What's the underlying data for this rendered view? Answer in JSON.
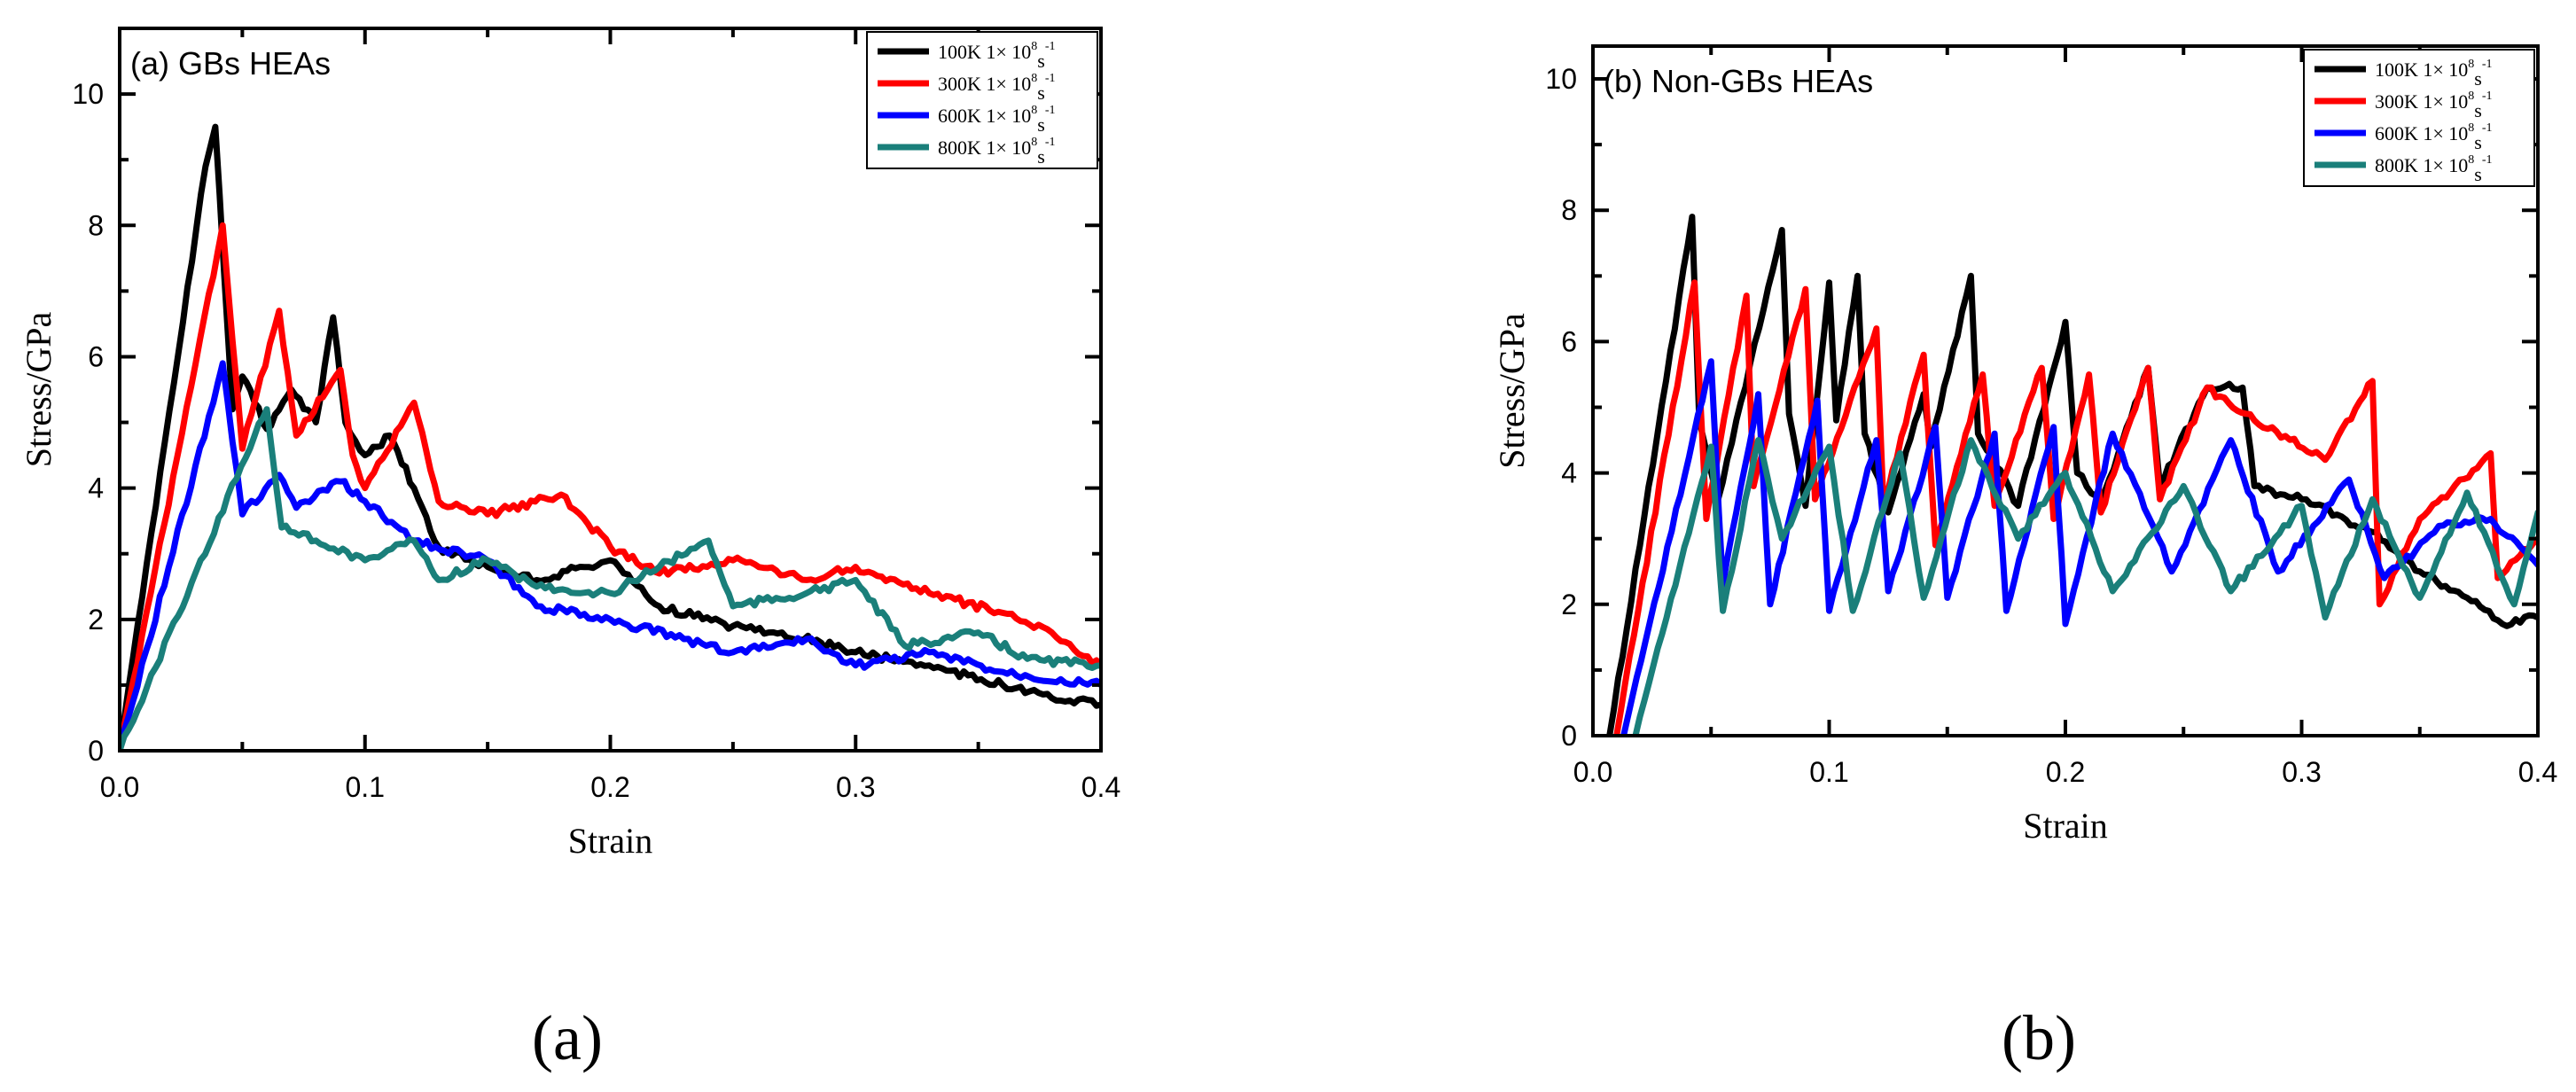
{
  "figure": {
    "subfigure_labels": [
      "(a)",
      "(b)"
    ]
  },
  "chart_data": [
    {
      "type": "line",
      "title": "(a) GBs HEAs",
      "xlabel": "Strain",
      "ylabel": "Stress/GPa",
      "xlim": [
        0,
        0.4
      ],
      "ylim": [
        0,
        11
      ],
      "xticks": [
        "0.0",
        "0.1",
        "0.2",
        "0.3",
        "0.4"
      ],
      "yticks": [
        "0",
        "2",
        "4",
        "6",
        "8",
        "10"
      ],
      "legend_position": "top-right",
      "series": [
        {
          "name": "100K  1× 10",
          "rate_exp": "8",
          "rate_unit": "s",
          "rate_unit_exp": "-1",
          "color": "#000000",
          "x": [
            0.0,
            0.035,
            0.039,
            0.046,
            0.05,
            0.06,
            0.07,
            0.08,
            0.087,
            0.092,
            0.1,
            0.11,
            0.12,
            0.13,
            0.15,
            0.17,
            0.2,
            0.22,
            0.25,
            0.27,
            0.3,
            0.33,
            0.36,
            0.38,
            0.4
          ],
          "y": [
            0.0,
            8.9,
            9.5,
            5.2,
            5.7,
            4.9,
            5.5,
            5.0,
            6.6,
            5.0,
            4.5,
            4.8,
            4.0,
            3.1,
            2.8,
            2.6,
            2.9,
            2.2,
            1.9,
            1.8,
            1.5,
            1.3,
            1.0,
            0.8,
            0.7
          ]
        },
        {
          "name": "300K  1× 10",
          "rate_exp": "8",
          "rate_unit": "s",
          "rate_unit_exp": "-1",
          "color": "#ff0000",
          "x": [
            0.0,
            0.04,
            0.042,
            0.05,
            0.065,
            0.072,
            0.09,
            0.095,
            0.1,
            0.12,
            0.13,
            0.15,
            0.18,
            0.2,
            0.22,
            0.25,
            0.28,
            0.3,
            0.33,
            0.36,
            0.38,
            0.4
          ],
          "y": [
            0.0,
            7.6,
            8.0,
            4.6,
            6.7,
            4.8,
            5.8,
            4.5,
            4.0,
            5.3,
            3.8,
            3.6,
            3.9,
            3.1,
            2.7,
            2.9,
            2.6,
            2.8,
            2.4,
            2.1,
            1.8,
            1.3
          ]
        },
        {
          "name": "600K  1× 10",
          "rate_exp": "8",
          "rate_unit": "s",
          "rate_unit_exp": "-1",
          "color": "#0000ff",
          "x": [
            0.0,
            0.04,
            0.042,
            0.05,
            0.065,
            0.072,
            0.09,
            0.1,
            0.12,
            0.15,
            0.17,
            0.2,
            0.23,
            0.25,
            0.28,
            0.3,
            0.33,
            0.36,
            0.4
          ],
          "y": [
            0.0,
            5.6,
            5.9,
            3.6,
            4.2,
            3.7,
            4.1,
            3.8,
            3.2,
            2.9,
            2.2,
            2.0,
            1.7,
            1.5,
            1.7,
            1.3,
            1.5,
            1.2,
            1.0
          ]
        },
        {
          "name": "800K  1× 10",
          "rate_exp": "8",
          "rate_unit": "s",
          "rate_unit_exp": "-1",
          "color": "#1a7f7a",
          "x": [
            0.0,
            0.055,
            0.06,
            0.066,
            0.08,
            0.1,
            0.12,
            0.13,
            0.15,
            0.17,
            0.2,
            0.22,
            0.24,
            0.25,
            0.28,
            0.3,
            0.32,
            0.35,
            0.37,
            0.4
          ],
          "y": [
            0.0,
            4.8,
            5.2,
            3.4,
            3.2,
            2.9,
            3.2,
            2.6,
            2.9,
            2.5,
            2.4,
            2.8,
            3.2,
            2.2,
            2.4,
            2.6,
            1.6,
            1.8,
            1.4,
            1.3
          ]
        }
      ]
    },
    {
      "type": "line",
      "title": "(b) Non-GBs HEAs",
      "xlabel": "Strain",
      "ylabel": "Stress/GPa",
      "xlim": [
        0,
        0.4
      ],
      "ylim": [
        0,
        10.5
      ],
      "xticks": [
        "0.0",
        "0.1",
        "0.2",
        "0.3",
        "0.4"
      ],
      "yticks": [
        "0",
        "2",
        "4",
        "6",
        "8",
        "10"
      ],
      "legend_position": "top-right",
      "series": [
        {
          "name": "100K  1× 10",
          "rate_exp": "8",
          "rate_unit": "s",
          "rate_unit_exp": "-1",
          "color": "#000000",
          "x": [
            0.007,
            0.042,
            0.045,
            0.053,
            0.08,
            0.083,
            0.09,
            0.1,
            0.103,
            0.112,
            0.115,
            0.125,
            0.14,
            0.143,
            0.16,
            0.163,
            0.18,
            0.2,
            0.205,
            0.215,
            0.235,
            0.24,
            0.26,
            0.275,
            0.28,
            0.3,
            0.33,
            0.35,
            0.37,
            0.385,
            0.4
          ],
          "y": [
            0.0,
            7.9,
            4.8,
            3.6,
            7.7,
            4.9,
            3.5,
            6.9,
            4.8,
            7.0,
            4.6,
            3.4,
            5.2,
            4.4,
            7.0,
            4.6,
            3.5,
            6.3,
            4.0,
            3.5,
            5.6,
            3.8,
            5.3,
            5.3,
            3.8,
            3.6,
            3.1,
            2.5,
            2.1,
            1.7,
            1.8
          ]
        },
        {
          "name": "300K  1× 10",
          "rate_exp": "8",
          "rate_unit": "s",
          "rate_unit_exp": "-1",
          "color": "#ff0000",
          "x": [
            0.01,
            0.043,
            0.048,
            0.065,
            0.068,
            0.09,
            0.094,
            0.12,
            0.123,
            0.14,
            0.145,
            0.165,
            0.17,
            0.19,
            0.195,
            0.21,
            0.215,
            0.235,
            0.24,
            0.26,
            0.28,
            0.31,
            0.33,
            0.333,
            0.35,
            0.38,
            0.383,
            0.4
          ],
          "y": [
            0.0,
            6.9,
            3.3,
            6.7,
            3.8,
            6.8,
            3.6,
            6.2,
            3.5,
            5.8,
            2.9,
            5.5,
            3.5,
            5.6,
            3.3,
            5.5,
            3.4,
            5.6,
            3.6,
            5.3,
            4.8,
            4.2,
            5.4,
            2.0,
            3.3,
            4.3,
            2.4,
            3.0
          ]
        },
        {
          "name": "600K  1× 10",
          "rate_exp": "8",
          "rate_unit": "s",
          "rate_unit_exp": "-1",
          "color": "#0000ff",
          "x": [
            0.013,
            0.05,
            0.055,
            0.07,
            0.075,
            0.095,
            0.1,
            0.12,
            0.125,
            0.145,
            0.15,
            0.17,
            0.175,
            0.195,
            0.2,
            0.22,
            0.245,
            0.27,
            0.29,
            0.32,
            0.335,
            0.36,
            0.38,
            0.4
          ],
          "y": [
            0.0,
            5.7,
            2.3,
            5.2,
            2.0,
            5.1,
            1.9,
            4.5,
            2.2,
            4.7,
            2.1,
            4.6,
            1.9,
            4.7,
            1.7,
            4.6,
            2.5,
            4.5,
            2.5,
            3.9,
            2.4,
            3.2,
            3.3,
            2.6
          ]
        },
        {
          "name": "800K  1× 10",
          "rate_exp": "8",
          "rate_unit": "s",
          "rate_unit_exp": "-1",
          "color": "#1a7f7a",
          "x": [
            0.018,
            0.05,
            0.055,
            0.07,
            0.08,
            0.1,
            0.11,
            0.13,
            0.14,
            0.16,
            0.18,
            0.2,
            0.22,
            0.25,
            0.27,
            0.3,
            0.31,
            0.33,
            0.35,
            0.37,
            0.39,
            0.4
          ],
          "y": [
            0.0,
            4.4,
            1.9,
            4.5,
            3.0,
            4.4,
            1.9,
            4.3,
            2.1,
            4.5,
            3.0,
            4.0,
            2.2,
            3.8,
            2.2,
            3.5,
            1.8,
            3.6,
            2.1,
            3.7,
            2.0,
            3.4
          ]
        }
      ]
    }
  ]
}
